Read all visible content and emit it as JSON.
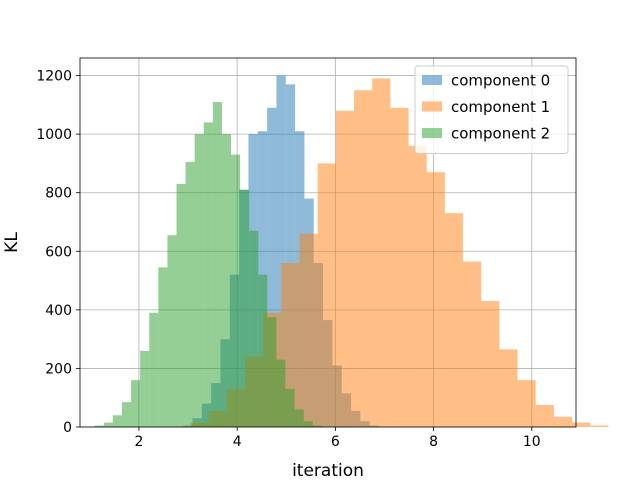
{
  "chart_data": {
    "type": "histogram",
    "xlabel": "iteration",
    "ylabel": "KL",
    "xlim": [
      0.8,
      10.9
    ],
    "ylim": [
      0,
      1260
    ],
    "xticks": [
      2,
      4,
      6,
      8,
      10
    ],
    "yticks": [
      0,
      200,
      400,
      600,
      800,
      1000,
      1200
    ],
    "grid": true,
    "legend_position": "top-right",
    "series": [
      {
        "name": "component 0",
        "color": "#1f77b4",
        "bin_start": 2.9,
        "bin_width": 0.19,
        "values": [
          5,
          30,
          80,
          150,
          300,
          520,
          810,
          1000,
          1010,
          1090,
          1200,
          1170,
          1010,
          780,
          560,
          365,
          210,
          115,
          55,
          20,
          5
        ]
      },
      {
        "name": "component 1",
        "color": "#ff7f0e",
        "bin_start": 3.05,
        "bin_width": 0.37,
        "values": [
          15,
          55,
          130,
          240,
          390,
          560,
          660,
          900,
          1080,
          1150,
          1190,
          1090,
          960,
          870,
          730,
          565,
          430,
          265,
          160,
          75,
          35,
          15,
          5
        ]
      },
      {
        "name": "component 2",
        "color": "#2ca02c",
        "bin_start": 1.1,
        "bin_width": 0.185,
        "values": [
          5,
          15,
          40,
          85,
          160,
          260,
          390,
          545,
          655,
          830,
          905,
          1000,
          1040,
          1110,
          1000,
          930,
          810,
          670,
          520,
          375,
          230,
          130,
          60,
          20,
          5
        ]
      }
    ]
  }
}
